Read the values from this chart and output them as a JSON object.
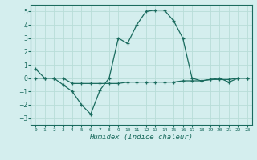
{
  "xlabel": "Humidex (Indice chaleur)",
  "line1_x": [
    0,
    1,
    2,
    3,
    4,
    5,
    6,
    7,
    8,
    9,
    10,
    11,
    12,
    13,
    14,
    15,
    16,
    17,
    18,
    19,
    20,
    21,
    22,
    23
  ],
  "line1_y": [
    0.7,
    0.0,
    0.0,
    -0.5,
    -1.0,
    -2.0,
    -2.7,
    -0.9,
    0.0,
    3.0,
    2.6,
    4.0,
    5.0,
    5.1,
    5.1,
    4.3,
    3.0,
    0.0,
    -0.2,
    -0.1,
    0.0,
    -0.3,
    0.0,
    0.0
  ],
  "line2_x": [
    0,
    1,
    2,
    3,
    4,
    5,
    6,
    7,
    8,
    9,
    10,
    11,
    12,
    13,
    14,
    15,
    16,
    17,
    18,
    19,
    20,
    21,
    22,
    23
  ],
  "line2_y": [
    0.0,
    0.0,
    0.0,
    0.0,
    -0.4,
    -0.4,
    -0.4,
    -0.4,
    -0.4,
    -0.4,
    -0.3,
    -0.3,
    -0.3,
    -0.3,
    -0.3,
    -0.3,
    -0.2,
    -0.2,
    -0.2,
    -0.1,
    -0.1,
    -0.1,
    0.0,
    0.0
  ],
  "line_color": "#1a6b5e",
  "bg_color": "#d4eeee",
  "grid_color": "#b8ddd8",
  "ylim": [
    -3.5,
    5.5
  ],
  "xlim": [
    -0.5,
    23.5
  ],
  "yticks": [
    -3,
    -2,
    -1,
    0,
    1,
    2,
    3,
    4,
    5
  ],
  "xtick_labels": [
    "0",
    "1",
    "2",
    "3",
    "4",
    "5",
    "6",
    "7",
    "8",
    "9",
    "10",
    "11",
    "12",
    "13",
    "14",
    "15",
    "16",
    "17",
    "18",
    "19",
    "20",
    "21",
    "22",
    "23"
  ]
}
